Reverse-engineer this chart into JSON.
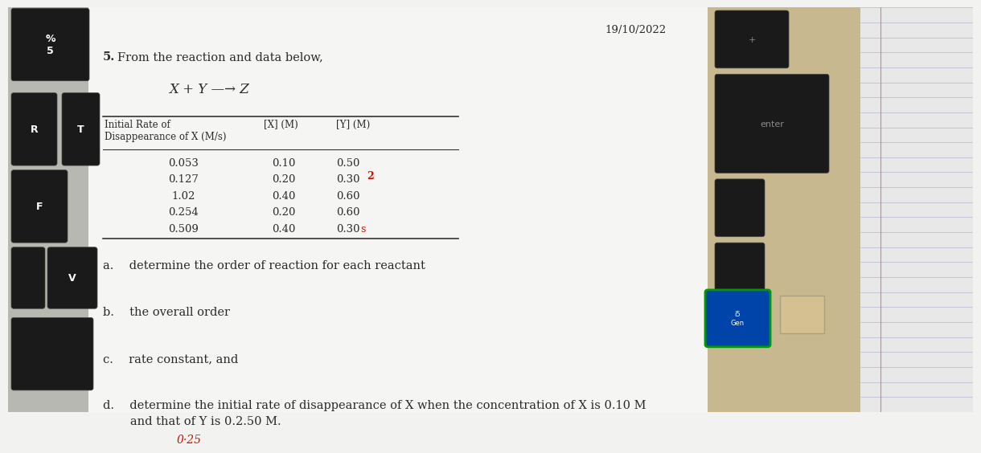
{
  "date": "19/10/2022",
  "problem_number": "5.",
  "intro_text": "From the reaction and data below,",
  "reaction": "X + Y —→ Z",
  "table_header_col1": "Initial Rate of\nDisappearance of X (M/s)",
  "table_header_col2": "[X] (M)",
  "table_header_col3": "[Y] (M)",
  "table_data": [
    [
      "0.053",
      "0.10",
      "0.50"
    ],
    [
      "0.127",
      "0.20",
      "0.30"
    ],
    [
      "1.02",
      "0.40",
      "0.60"
    ],
    [
      "0.254",
      "0.20",
      "0.60"
    ],
    [
      "0.509",
      "0.40",
      "0.30"
    ]
  ],
  "annotation_2": "2",
  "annotation_s": "s",
  "part_a": "a.  determine the order of reaction for each reactant",
  "part_b": "b.  the overall order",
  "part_c": "c.  rate constant, and",
  "part_d_line1": "d.  determine the initial rate of disappearance of X when the concentration of X is 0.10 M",
  "part_d_line2": "   and that of Y is 0.2.50 M.",
  "annotation_025": "0·25",
  "bg_paper": "#f2f2f0",
  "bg_keyboard_left": "#c8c8c4",
  "key_dark": "#1a1a1a",
  "key_border": "#888880",
  "text_color": "#2a2a2a",
  "red_color": "#cc1100",
  "right_bg": "#c8b898",
  "enter_key_color": "#1a1a1a",
  "enter_text_color": "#aaaaaa"
}
